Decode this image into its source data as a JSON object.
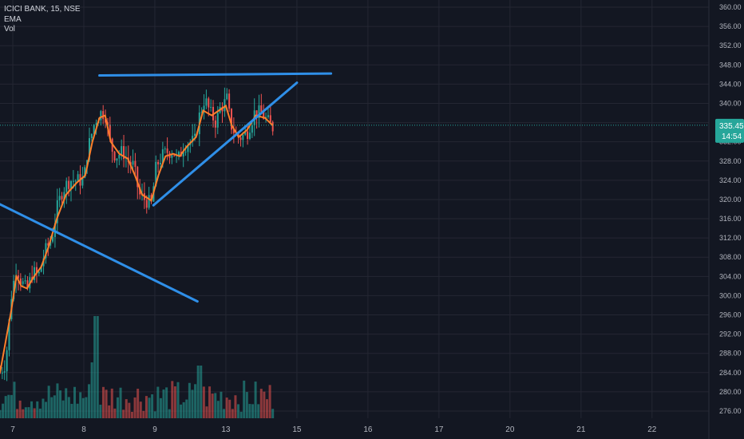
{
  "header": {
    "symbol_line": "ICICI BANK, 15, NSE",
    "indicators": [
      "EMA",
      "Vol"
    ]
  },
  "price_badge": {
    "price": "335.45",
    "countdown": "14:54"
  },
  "colors": {
    "background": "#131722",
    "grid": "#242733",
    "up": "#26a69a",
    "down": "#ef5350",
    "ema": "#ff7f2a",
    "trendline": "#2f8fe8",
    "badge": "#26a69a",
    "axis_text": "#b2b5be"
  },
  "chart_data": {
    "type": "candlestick",
    "y_axis": {
      "ticks": [
        "360.00",
        "356.00",
        "352.00",
        "348.00",
        "344.00",
        "340.00",
        "336.00",
        "332.00",
        "328.00",
        "324.00",
        "320.00",
        "316.00",
        "312.00",
        "308.00",
        "304.00",
        "300.00",
        "296.00",
        "292.00",
        "288.00",
        "284.00",
        "280.00",
        "276.00"
      ],
      "range": [
        274.5,
        361.5
      ]
    },
    "x_axis": {
      "ticks": [
        {
          "label": "7",
          "day": 7
        },
        {
          "label": "8",
          "day": 8
        },
        {
          "label": "9",
          "day": 9
        },
        {
          "label": "13",
          "day": 10
        },
        {
          "label": "15",
          "day": 11
        },
        {
          "label": "16",
          "day": 12
        },
        {
          "label": "17",
          "day": 13
        },
        {
          "label": "20",
          "day": 14
        },
        {
          "label": "21",
          "day": 15
        },
        {
          "label": "22",
          "day": 16
        }
      ],
      "range": [
        6.82,
        16.8
      ]
    },
    "price_path": [
      [
        6.82,
        284
      ],
      [
        6.9,
        286
      ],
      [
        6.98,
        300
      ],
      [
        7.05,
        306
      ],
      [
        7.12,
        303
      ],
      [
        7.2,
        301
      ],
      [
        7.28,
        305
      ],
      [
        7.36,
        304
      ],
      [
        7.45,
        309
      ],
      [
        7.55,
        312
      ],
      [
        7.62,
        318
      ],
      [
        7.7,
        322
      ],
      [
        7.8,
        324
      ],
      [
        7.9,
        324
      ],
      [
        8.0,
        324
      ],
      [
        8.05,
        330
      ],
      [
        8.15,
        336
      ],
      [
        8.22,
        338
      ],
      [
        8.3,
        338
      ],
      [
        8.38,
        331
      ],
      [
        8.45,
        329
      ],
      [
        8.55,
        330
      ],
      [
        8.62,
        328
      ],
      [
        8.7,
        327
      ],
      [
        8.78,
        321
      ],
      [
        8.86,
        320
      ],
      [
        8.95,
        319
      ],
      [
        9.02,
        327
      ],
      [
        9.1,
        329
      ],
      [
        9.18,
        330
      ],
      [
        9.26,
        330
      ],
      [
        9.32,
        328
      ],
      [
        9.4,
        331
      ],
      [
        9.48,
        332
      ],
      [
        9.56,
        332
      ],
      [
        9.62,
        337
      ],
      [
        9.7,
        341
      ],
      [
        9.78,
        338
      ],
      [
        9.86,
        336
      ],
      [
        9.92,
        339
      ],
      [
        9.98,
        340
      ],
      [
        10.02,
        341
      ],
      [
        10.06,
        336
      ],
      [
        10.15,
        333
      ],
      [
        10.22,
        333
      ],
      [
        10.3,
        334
      ],
      [
        10.4,
        338
      ],
      [
        10.5,
        338
      ],
      [
        10.6,
        336
      ],
      [
        10.66,
        335
      ]
    ],
    "ema_path": [
      [
        6.82,
        284
      ],
      [
        6.98,
        297
      ],
      [
        7.05,
        304
      ],
      [
        7.12,
        302
      ],
      [
        7.2,
        301.5
      ],
      [
        7.3,
        304
      ],
      [
        7.4,
        306
      ],
      [
        7.5,
        310
      ],
      [
        7.62,
        316
      ],
      [
        7.75,
        321
      ],
      [
        7.9,
        323.5
      ],
      [
        8.02,
        325
      ],
      [
        8.12,
        332
      ],
      [
        8.22,
        337
      ],
      [
        8.3,
        337.5
      ],
      [
        8.38,
        332
      ],
      [
        8.5,
        329.5
      ],
      [
        8.62,
        328.5
      ],
      [
        8.72,
        325
      ],
      [
        8.82,
        321
      ],
      [
        8.95,
        319.8
      ],
      [
        9.05,
        325
      ],
      [
        9.15,
        329
      ],
      [
        9.26,
        329.5
      ],
      [
        9.35,
        329
      ],
      [
        9.45,
        331
      ],
      [
        9.58,
        333
      ],
      [
        9.68,
        338.5
      ],
      [
        9.8,
        337.5
      ],
      [
        9.9,
        338.5
      ],
      [
        10.0,
        339.5
      ],
      [
        10.08,
        335.5
      ],
      [
        10.18,
        333
      ],
      [
        10.3,
        334.5
      ],
      [
        10.42,
        337.5
      ],
      [
        10.55,
        337
      ],
      [
        10.66,
        335.4
      ]
    ],
    "candles": {
      "x_start": 6.82,
      "x_end": 10.66,
      "count": 120
    },
    "volume": {
      "x_start": 6.82,
      "x_end": 10.66,
      "count": 96
    },
    "trendlines": [
      {
        "from": [
          8.22,
          345.8
        ],
        "to": [
          11.48,
          346.2
        ]
      },
      {
        "from": [
          8.98,
          318.8
        ],
        "to": [
          11.0,
          344.3
        ]
      },
      {
        "from": [
          6.82,
          319.0
        ],
        "to": [
          9.6,
          298.8
        ]
      }
    ],
    "last_price": 335.45
  }
}
